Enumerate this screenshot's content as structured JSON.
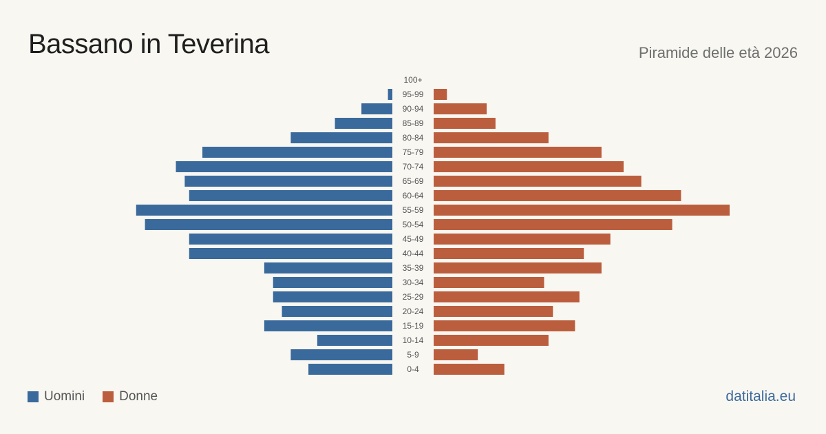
{
  "header": {
    "title": "Bassano in Teverina",
    "subtitle": "Piramide delle età 2026"
  },
  "legend": {
    "men_label": "Uomini",
    "women_label": "Donne"
  },
  "brand": "datitalia.eu",
  "colors": {
    "men": "#3a6a9b",
    "women": "#bb5e3d",
    "background": "#f9f7f2",
    "tick_text": "#555555"
  },
  "chart_data": {
    "type": "bar",
    "orientation": "horizontal-pyramid",
    "title": "Bassano in Teverina",
    "subtitle": "Piramide delle età 2026",
    "categories": [
      "100+",
      "95-99",
      "90-94",
      "85-89",
      "80-84",
      "75-79",
      "70-74",
      "65-69",
      "60-64",
      "55-59",
      "50-54",
      "45-49",
      "40-44",
      "35-39",
      "30-34",
      "25-29",
      "20-24",
      "15-19",
      "10-14",
      "5-9",
      "0-4"
    ],
    "series": [
      {
        "name": "Uomini",
        "values": [
          0,
          1,
          7,
          13,
          23,
          43,
          49,
          47,
          46,
          58,
          56,
          46,
          46,
          29,
          27,
          27,
          25,
          29,
          17,
          23,
          19
        ]
      },
      {
        "name": "Donne",
        "values": [
          0,
          3,
          12,
          14,
          26,
          38,
          43,
          47,
          56,
          67,
          54,
          40,
          34,
          38,
          25,
          33,
          27,
          32,
          26,
          10,
          16
        ]
      }
    ],
    "xlim": [
      0,
      67
    ],
    "legend_position": "bottom-left",
    "grid": false
  }
}
